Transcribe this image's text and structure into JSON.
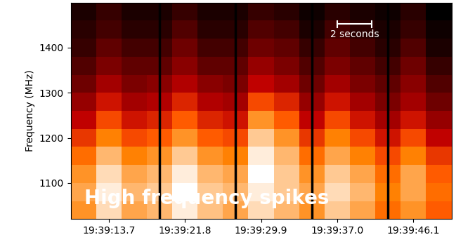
{
  "chart_data": {
    "type": "heatmap",
    "y_label": "Frequency (MHz)",
    "categories": [
      null,
      "19:39:13.7",
      null,
      null,
      "19:39:21.8",
      null,
      null,
      "19:39:29.9",
      null,
      null,
      "19:39:37.0",
      null,
      null,
      "19:39:46.1",
      null
    ],
    "y_bins": [
      1020,
      1060,
      1100,
      1140,
      1180,
      1220,
      1260,
      1300,
      1340,
      1380,
      1420,
      1460,
      1500
    ],
    "cells": [
      [
        70,
        78,
        72,
        74,
        80,
        75,
        72,
        78,
        74,
        70,
        76,
        72,
        66,
        70,
        64
      ],
      [
        72,
        80,
        74,
        76,
        82,
        76,
        74,
        80,
        76,
        72,
        78,
        74,
        68,
        72,
        66
      ],
      [
        70,
        78,
        72,
        74,
        80,
        74,
        72,
        82,
        76,
        70,
        76,
        72,
        66,
        72,
        64
      ],
      [
        66,
        74,
        68,
        70,
        76,
        70,
        68,
        80,
        74,
        66,
        72,
        68,
        62,
        68,
        60
      ],
      [
        60,
        68,
        62,
        64,
        70,
        64,
        62,
        76,
        70,
        60,
        68,
        62,
        56,
        62,
        54
      ],
      [
        54,
        62,
        56,
        58,
        64,
        58,
        56,
        70,
        64,
        54,
        62,
        56,
        50,
        56,
        48
      ],
      [
        48,
        56,
        50,
        52,
        58,
        52,
        50,
        62,
        58,
        48,
        56,
        50,
        44,
        50,
        42
      ],
      [
        42,
        50,
        44,
        46,
        52,
        46,
        44,
        54,
        50,
        42,
        50,
        44,
        40,
        46,
        38
      ],
      [
        38,
        44,
        40,
        40,
        46,
        40,
        40,
        48,
        44,
        38,
        44,
        40,
        36,
        42,
        34
      ],
      [
        34,
        40,
        36,
        36,
        42,
        36,
        36,
        42,
        40,
        34,
        40,
        36,
        32,
        38,
        30
      ],
      [
        32,
        36,
        32,
        32,
        38,
        32,
        32,
        38,
        36,
        30,
        36,
        32,
        30,
        34,
        28
      ],
      [
        30,
        34,
        30,
        30,
        34,
        30,
        30,
        34,
        32,
        28,
        32,
        30,
        28,
        32,
        26
      ]
    ],
    "ylim": [
      1020,
      1500
    ],
    "yticks": [
      1100,
      1200,
      1300,
      1400
    ],
    "annotations": [
      "High frequency spikes"
    ],
    "scale_bar": "2 seconds"
  }
}
